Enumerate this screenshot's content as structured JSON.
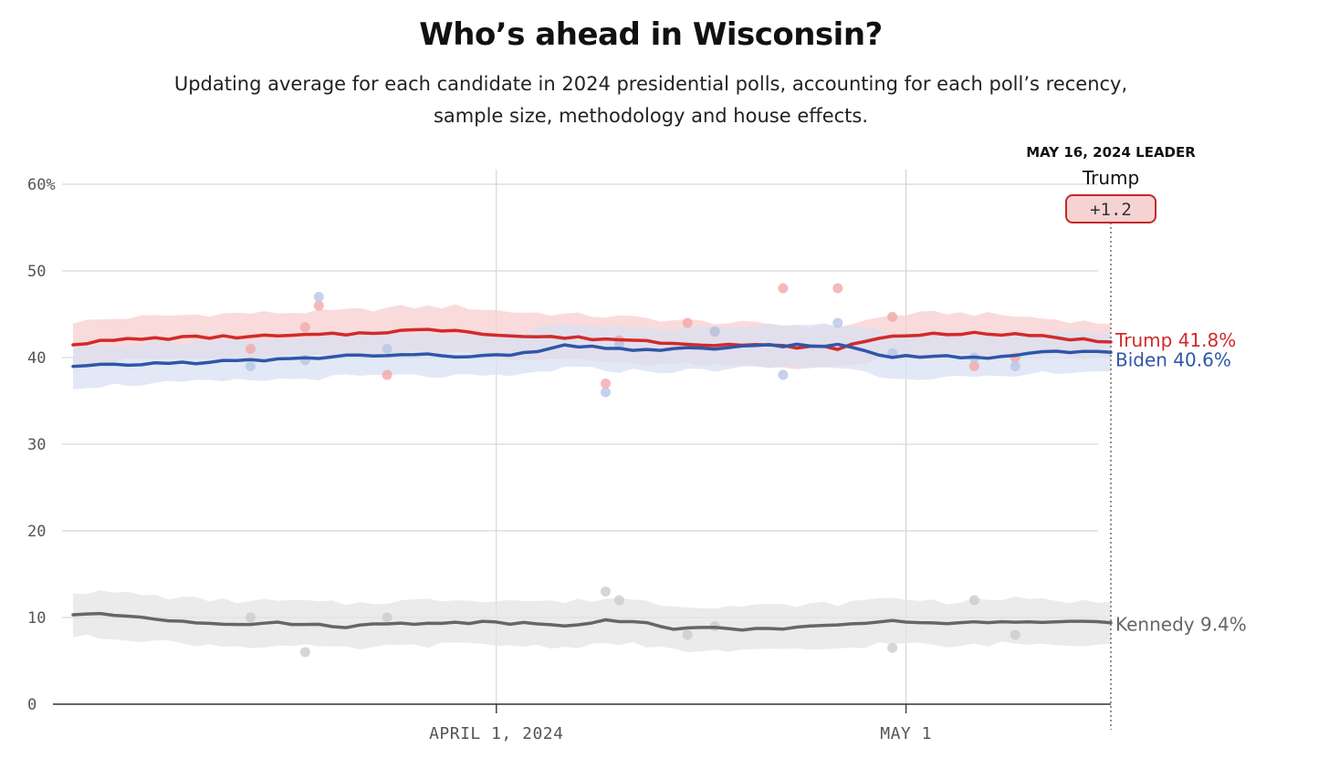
{
  "title": "Who’s ahead in Wisconsin?",
  "subtitle_line1": "Updating average for each candidate in 2024 presidential polls, accounting for each poll’s recency,",
  "subtitle_line2": "sample size, methodology and house effects.",
  "leader": {
    "heading": "MAY 16, 2024 LEADER",
    "name": "Trump",
    "margin": "+1.2"
  },
  "chart_data": {
    "type": "line",
    "title": "Who’s ahead in Wisconsin?",
    "ylim": [
      0,
      60
    ],
    "yticks": [
      "60%",
      "50",
      "40",
      "30",
      "20",
      "10",
      "0"
    ],
    "ytick_values": [
      60,
      50,
      40,
      30,
      20,
      10,
      0
    ],
    "xlim": [
      "2024-03-01",
      "2024-05-16"
    ],
    "xticks": [
      {
        "date": "2024-04-01",
        "label": "APRIL 1, 2024"
      },
      {
        "date": "2024-05-01",
        "label": "MAY 1"
      }
    ],
    "grid": true,
    "series": [
      {
        "name": "Trump",
        "end_label": "Trump 41.8%",
        "color": "#d22a2a",
        "band_color": "#f7cfcf",
        "dot_color": "#f2a8a8",
        "x": [
          "2024-03-01",
          "2024-03-05",
          "2024-03-09",
          "2024-03-13",
          "2024-03-17",
          "2024-03-21",
          "2024-03-25",
          "2024-03-29",
          "2024-04-02",
          "2024-04-06",
          "2024-04-10",
          "2024-04-14",
          "2024-04-18",
          "2024-04-22",
          "2024-04-26",
          "2024-04-30",
          "2024-05-04",
          "2024-05-08",
          "2024-05-12",
          "2024-05-16"
        ],
        "values": [
          41.6,
          42.1,
          42.3,
          42.4,
          42.5,
          42.7,
          43.1,
          43.2,
          42.5,
          42.3,
          42.1,
          41.7,
          41.5,
          41.3,
          41.1,
          42.5,
          42.8,
          42.7,
          42.3,
          41.8
        ],
        "band_upper": [
          44.1,
          44.6,
          44.9,
          45.1,
          45.2,
          45.4,
          45.8,
          45.9,
          45.3,
          45.0,
          44.7,
          44.3,
          44.0,
          43.8,
          43.6,
          44.9,
          45.2,
          44.9,
          44.4,
          43.9
        ],
        "band_lower": [
          39.2,
          39.7,
          39.9,
          40.0,
          40.1,
          40.2,
          40.5,
          40.6,
          39.9,
          39.7,
          39.5,
          39.2,
          39.0,
          38.9,
          38.8,
          40.0,
          40.3,
          40.3,
          40.1,
          39.8
        ],
        "polls": [
          {
            "x": "2024-03-14",
            "y": 41
          },
          {
            "x": "2024-03-18",
            "y": 43.5
          },
          {
            "x": "2024-03-19",
            "y": 46
          },
          {
            "x": "2024-03-24",
            "y": 38
          },
          {
            "x": "2024-04-09",
            "y": 37
          },
          {
            "x": "2024-04-10",
            "y": 42
          },
          {
            "x": "2024-04-15",
            "y": 44
          },
          {
            "x": "2024-04-17",
            "y": 43
          },
          {
            "x": "2024-04-22",
            "y": 48
          },
          {
            "x": "2024-04-26",
            "y": 48
          },
          {
            "x": "2024-04-30",
            "y": 44.7
          },
          {
            "x": "2024-05-06",
            "y": 39
          },
          {
            "x": "2024-05-09",
            "y": 40
          }
        ]
      },
      {
        "name": "Biden",
        "end_label": "Biden 40.6%",
        "color": "#2f56a8",
        "band_color": "#d8e0f2",
        "dot_color": "#b8c6e6",
        "x": [
          "2024-03-01",
          "2024-03-05",
          "2024-03-09",
          "2024-03-13",
          "2024-03-17",
          "2024-03-21",
          "2024-03-25",
          "2024-03-29",
          "2024-04-02",
          "2024-04-06",
          "2024-04-10",
          "2024-04-14",
          "2024-04-18",
          "2024-04-22",
          "2024-04-26",
          "2024-04-30",
          "2024-05-04",
          "2024-05-08",
          "2024-05-12",
          "2024-05-16"
        ],
        "values": [
          38.9,
          39.2,
          39.4,
          39.6,
          39.8,
          40.2,
          40.3,
          40.2,
          40.2,
          41.3,
          41.0,
          40.9,
          41.2,
          41.4,
          41.4,
          40.1,
          40.1,
          40.0,
          40.7,
          40.6
        ],
        "band_upper": [
          41.2,
          41.6,
          41.8,
          42.0,
          42.2,
          42.6,
          42.7,
          42.6,
          42.7,
          43.8,
          43.5,
          43.3,
          43.6,
          43.9,
          43.9,
          42.6,
          42.5,
          42.4,
          43.0,
          42.8
        ],
        "band_lower": [
          36.6,
          36.9,
          37.1,
          37.3,
          37.5,
          37.8,
          37.9,
          37.8,
          37.8,
          38.8,
          38.5,
          38.4,
          38.7,
          38.9,
          38.9,
          37.7,
          37.7,
          37.6,
          38.4,
          38.4
        ],
        "polls": [
          {
            "x": "2024-03-14",
            "y": 39
          },
          {
            "x": "2024-03-18",
            "y": 39.7
          },
          {
            "x": "2024-03-19",
            "y": 47
          },
          {
            "x": "2024-03-24",
            "y": 41
          },
          {
            "x": "2024-04-09",
            "y": 36
          },
          {
            "x": "2024-04-10",
            "y": 41.5
          },
          {
            "x": "2024-04-17",
            "y": 43
          },
          {
            "x": "2024-04-22",
            "y": 38
          },
          {
            "x": "2024-04-26",
            "y": 44
          },
          {
            "x": "2024-04-30",
            "y": 40.5
          },
          {
            "x": "2024-05-06",
            "y": 40
          },
          {
            "x": "2024-05-09",
            "y": 39
          }
        ]
      },
      {
        "name": "Kennedy",
        "end_label": "Kennedy 9.4%",
        "color": "#666666",
        "band_color": "#e4e4e4",
        "dot_color": "#cccccc",
        "x": [
          "2024-03-01",
          "2024-03-05",
          "2024-03-09",
          "2024-03-13",
          "2024-03-17",
          "2024-03-21",
          "2024-03-25",
          "2024-03-29",
          "2024-04-02",
          "2024-04-06",
          "2024-04-10",
          "2024-04-14",
          "2024-04-18",
          "2024-04-22",
          "2024-04-26",
          "2024-04-30",
          "2024-05-04",
          "2024-05-08",
          "2024-05-12",
          "2024-05-16"
        ],
        "values": [
          10.4,
          10.2,
          9.6,
          9.3,
          9.3,
          9.0,
          9.3,
          9.5,
          9.4,
          9.2,
          9.7,
          8.8,
          8.7,
          8.8,
          9.0,
          9.7,
          9.2,
          9.6,
          9.4,
          9.4
        ],
        "band_upper": [
          13.0,
          12.8,
          12.2,
          11.9,
          11.9,
          11.6,
          11.9,
          12.1,
          12.0,
          11.8,
          12.3,
          11.4,
          11.3,
          11.4,
          11.6,
          12.3,
          11.8,
          12.2,
          11.9,
          11.8
        ],
        "band_lower": [
          7.8,
          7.6,
          7.0,
          6.7,
          6.7,
          6.4,
          6.7,
          6.9,
          6.8,
          6.6,
          7.1,
          6.2,
          6.1,
          6.2,
          6.4,
          7.1,
          6.6,
          7.0,
          6.9,
          7.0
        ],
        "polls": [
          {
            "x": "2024-03-14",
            "y": 10
          },
          {
            "x": "2024-03-18",
            "y": 6
          },
          {
            "x": "2024-03-24",
            "y": 10
          },
          {
            "x": "2024-04-09",
            "y": 13
          },
          {
            "x": "2024-04-10",
            "y": 12
          },
          {
            "x": "2024-04-15",
            "y": 8
          },
          {
            "x": "2024-04-17",
            "y": 9
          },
          {
            "x": "2024-04-30",
            "y": 6.5
          },
          {
            "x": "2024-05-06",
            "y": 12
          },
          {
            "x": "2024-05-09",
            "y": 8
          }
        ]
      }
    ]
  }
}
